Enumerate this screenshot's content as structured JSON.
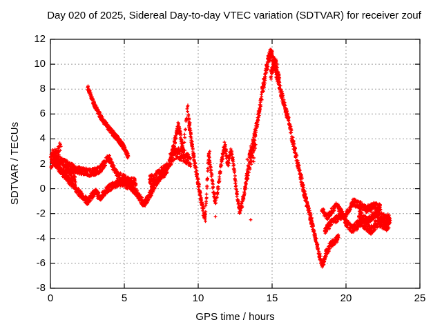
{
  "title": "Day 020 of 2025, Sidereal Day-to-day VTEC variation (SDTVAR) for receiver zouf",
  "chart_data": {
    "type": "scatter",
    "title": "Day 020 of 2025, Sidereal Day-to-day VTEC variation (SDTVAR) for receiver zouf",
    "xlabel": "GPS time / hours",
    "ylabel": "SDTVAR / TECUs",
    "xlim": [
      0,
      25
    ],
    "ylim": [
      -8,
      12
    ],
    "x_ticks": [
      0,
      5,
      10,
      15,
      20,
      25
    ],
    "y_ticks": [
      -8,
      -6,
      -4,
      -2,
      0,
      2,
      4,
      6,
      8,
      10,
      12
    ],
    "grid": true,
    "legend": "none",
    "marker": "plus",
    "marker_color": "#ff0000",
    "grid_color": "#9b9b9b",
    "axis_color": "#000000",
    "background_color": "#ffffff",
    "series_note": "single red-plus scatter series of sidereal day-to-day VTEC differences vs GPS time; data spans t=0 to t=23.0 h",
    "segments": [
      {
        "name": "start-cluster",
        "spread": 0.75,
        "density": 150,
        "points": [
          [
            0.02,
            2.3
          ],
          [
            0.2,
            2.6
          ],
          [
            0.45,
            2.45
          ],
          [
            0.6,
            2.35
          ]
        ]
      },
      {
        "name": "start-spike",
        "spread": 0.3,
        "density": 40,
        "points": [
          [
            0.5,
            3.0
          ],
          [
            0.62,
            3.55
          ],
          [
            0.72,
            3.1
          ]
        ]
      },
      {
        "name": "upper-band-early",
        "spread": 0.3,
        "density": 85,
        "points": [
          [
            0.3,
            2.5
          ],
          [
            0.7,
            2.2
          ],
          [
            1.0,
            2.05
          ],
          [
            1.4,
            1.75
          ],
          [
            1.8,
            1.5
          ],
          [
            2.2,
            1.4
          ],
          [
            2.6,
            1.3
          ],
          [
            3.0,
            1.35
          ],
          [
            3.4,
            1.6
          ],
          [
            3.7,
            2.1
          ],
          [
            3.9,
            2.5
          ],
          [
            4.05,
            2.3
          ],
          [
            4.25,
            1.7
          ],
          [
            4.5,
            1.15
          ],
          [
            4.8,
            0.9
          ],
          [
            5.1,
            0.75
          ],
          [
            5.5,
            0.6
          ],
          [
            5.8,
            0.5
          ]
        ]
      },
      {
        "name": "cluster-1h",
        "spread": 0.45,
        "density": 80,
        "points": [
          [
            0.85,
            1.7
          ],
          [
            1.1,
            1.25
          ],
          [
            1.4,
            0.95
          ],
          [
            1.7,
            0.9
          ]
        ]
      },
      {
        "name": "lower-arc-early",
        "spread": 0.28,
        "density": 85,
        "points": [
          [
            0.3,
            2.1
          ],
          [
            0.6,
            1.6
          ],
          [
            0.9,
            1.15
          ],
          [
            1.2,
            0.7
          ],
          [
            1.5,
            0.3
          ],
          [
            1.9,
            -0.25
          ],
          [
            2.2,
            -0.7
          ],
          [
            2.5,
            -1.0
          ],
          [
            2.8,
            -0.6
          ],
          [
            3.0,
            -0.25
          ],
          [
            3.2,
            -0.5
          ],
          [
            3.4,
            -0.7
          ],
          [
            3.6,
            -0.45
          ],
          [
            3.8,
            -0.1
          ],
          [
            4.0,
            0.1
          ],
          [
            4.3,
            0.3
          ],
          [
            4.6,
            0.45
          ],
          [
            5.0,
            0.5
          ],
          [
            5.4,
            0.4
          ]
        ]
      },
      {
        "name": "high-arc",
        "spread": 0.22,
        "density": 110,
        "points": [
          [
            2.52,
            8.2
          ],
          [
            2.7,
            7.55
          ],
          [
            2.9,
            6.95
          ],
          [
            3.15,
            6.3
          ],
          [
            3.45,
            5.7
          ],
          [
            3.75,
            5.15
          ],
          [
            4.05,
            4.7
          ],
          [
            4.35,
            4.3
          ],
          [
            4.65,
            3.85
          ],
          [
            4.95,
            3.35
          ],
          [
            5.15,
            2.9
          ],
          [
            5.28,
            2.5
          ]
        ]
      },
      {
        "name": "dip-6h",
        "spread": 0.3,
        "density": 85,
        "points": [
          [
            5.1,
            0.35
          ],
          [
            5.5,
            0.1
          ],
          [
            5.8,
            -0.3
          ],
          [
            6.1,
            -0.85
          ],
          [
            6.35,
            -1.2
          ],
          [
            6.6,
            -0.75
          ],
          [
            6.9,
            -0.15
          ],
          [
            7.2,
            0.5
          ],
          [
            7.5,
            1.1
          ],
          [
            7.8,
            1.65
          ],
          [
            8.0,
            1.9
          ]
        ]
      },
      {
        "name": "band-7h",
        "spread": 0.5,
        "density": 95,
        "points": [
          [
            6.7,
            0.55
          ],
          [
            7.1,
            0.85
          ],
          [
            7.5,
            1.25
          ],
          [
            7.9,
            1.55
          ]
        ]
      },
      {
        "name": "peak9-rise",
        "spread": 0.33,
        "density": 95,
        "points": [
          [
            8.0,
            1.9
          ],
          [
            8.2,
            2.7
          ],
          [
            8.4,
            3.7
          ],
          [
            8.55,
            4.5
          ],
          [
            8.65,
            5.0
          ],
          [
            8.78,
            4.5
          ],
          [
            8.9,
            3.6
          ],
          [
            9.0,
            3.05
          ]
        ]
      },
      {
        "name": "peak9-spike",
        "spread": 0.3,
        "density": 45,
        "points": [
          [
            9.05,
            3.8
          ],
          [
            9.15,
            5.0
          ],
          [
            9.25,
            6.1
          ],
          [
            9.3,
            6.5
          ],
          [
            9.38,
            5.7
          ],
          [
            9.45,
            4.9
          ]
        ]
      },
      {
        "name": "under-peak-band",
        "spread": 0.5,
        "density": 85,
        "points": [
          [
            8.1,
            2.3
          ],
          [
            8.5,
            2.9
          ],
          [
            8.9,
            2.75
          ],
          [
            9.2,
            2.5
          ],
          [
            9.5,
            2.1
          ]
        ]
      },
      {
        "name": "peak9-fall",
        "spread": 0.35,
        "density": 115,
        "points": [
          [
            9.35,
            5.3
          ],
          [
            9.5,
            4.2
          ],
          [
            9.65,
            3.0
          ],
          [
            9.8,
            1.8
          ],
          [
            9.95,
            0.8
          ],
          [
            10.1,
            -0.3
          ],
          [
            10.25,
            -1.3
          ],
          [
            10.4,
            -2.1
          ],
          [
            10.5,
            -2.3
          ]
        ]
      },
      {
        "name": "rebound-10.6",
        "spread": 0.3,
        "density": 110,
        "points": [
          [
            10.5,
            -1.8
          ],
          [
            10.57,
            -0.4
          ],
          [
            10.63,
            1.0
          ],
          [
            10.68,
            2.3
          ],
          [
            10.72,
            2.75
          ],
          [
            10.8,
            2.1
          ],
          [
            10.9,
            1.1
          ],
          [
            11.0,
            0.1
          ],
          [
            11.1,
            -0.7
          ],
          [
            11.2,
            -1.15
          ]
        ]
      },
      {
        "name": "peak-11.8",
        "spread": 0.32,
        "density": 100,
        "points": [
          [
            11.25,
            -0.8
          ],
          [
            11.4,
            0.5
          ],
          [
            11.55,
            1.9
          ],
          [
            11.7,
            3.0
          ],
          [
            11.8,
            3.55
          ],
          [
            11.9,
            2.8
          ],
          [
            12.0,
            1.9
          ],
          [
            12.1,
            2.5
          ],
          [
            12.2,
            3.2
          ],
          [
            12.32,
            2.5
          ],
          [
            12.45,
            1.3
          ],
          [
            12.58,
            0.0
          ],
          [
            12.7,
            -1.1
          ],
          [
            12.82,
            -1.8
          ],
          [
            12.95,
            -1.35
          ],
          [
            13.1,
            -0.4
          ],
          [
            13.25,
            0.7
          ],
          [
            13.4,
            1.7
          ]
        ]
      },
      {
        "name": "scatter-13.5",
        "spread": 1.0,
        "density": 70,
        "points": [
          [
            13.3,
            1.5
          ],
          [
            13.5,
            2.3
          ],
          [
            13.7,
            3.0
          ],
          [
            13.9,
            3.6
          ]
        ]
      },
      {
        "name": "bigpeak-rise",
        "spread": 0.45,
        "density": 120,
        "points": [
          [
            13.45,
            2.3
          ],
          [
            13.7,
            3.6
          ],
          [
            13.95,
            5.0
          ],
          [
            14.15,
            6.4
          ],
          [
            14.35,
            7.9
          ],
          [
            14.55,
            9.2
          ],
          [
            14.72,
            10.2
          ],
          [
            14.85,
            10.75
          ],
          [
            14.95,
            10.85
          ],
          [
            15.05,
            10.5
          ],
          [
            15.15,
            9.9
          ]
        ]
      },
      {
        "name": "bigpeak-lobe2",
        "spread": 0.4,
        "density": 95,
        "points": [
          [
            14.9,
            9.0
          ],
          [
            15.05,
            9.8
          ],
          [
            15.2,
            10.25
          ],
          [
            15.35,
            9.7
          ],
          [
            15.5,
            8.8
          ]
        ]
      },
      {
        "name": "bigpeak-fall",
        "spread": 0.38,
        "density": 110,
        "points": [
          [
            15.2,
            9.6
          ],
          [
            15.4,
            8.7
          ],
          [
            15.6,
            7.75
          ],
          [
            15.8,
            6.8
          ],
          [
            15.95,
            6.2
          ],
          [
            16.1,
            5.5
          ],
          [
            16.3,
            4.4
          ],
          [
            16.5,
            3.3
          ],
          [
            16.7,
            2.2
          ],
          [
            16.9,
            1.2
          ],
          [
            17.1,
            0.1
          ],
          [
            17.3,
            -0.95
          ],
          [
            17.5,
            -1.9
          ],
          [
            17.7,
            -2.7
          ]
        ]
      },
      {
        "name": "deep-dip-18.3",
        "spread": 0.3,
        "density": 90,
        "points": [
          [
            17.55,
            -2.2
          ],
          [
            17.8,
            -3.3
          ],
          [
            18.0,
            -4.3
          ],
          [
            18.2,
            -5.3
          ],
          [
            18.35,
            -6.0
          ],
          [
            18.45,
            -6.1
          ],
          [
            18.6,
            -5.3
          ],
          [
            18.8,
            -4.8
          ],
          [
            19.05,
            -4.4
          ],
          [
            19.3,
            -4.1
          ],
          [
            19.5,
            -4.0
          ]
        ]
      },
      {
        "name": "hook-branch",
        "spread": 0.25,
        "density": 85,
        "points": [
          [
            18.35,
            -1.6
          ],
          [
            18.55,
            -2.05
          ],
          [
            18.75,
            -2.25
          ],
          [
            18.95,
            -1.95
          ],
          [
            19.15,
            -1.6
          ],
          [
            19.35,
            -1.35
          ]
        ]
      },
      {
        "name": "mid-branch-19",
        "spread": 0.28,
        "density": 75,
        "points": [
          [
            18.55,
            -3.4
          ],
          [
            18.85,
            -2.95
          ],
          [
            19.15,
            -2.6
          ],
          [
            19.45,
            -2.35
          ],
          [
            19.7,
            -2.2
          ]
        ]
      },
      {
        "name": "tail-upper",
        "spread": 0.3,
        "density": 85,
        "points": [
          [
            19.4,
            -1.3
          ],
          [
            19.65,
            -1.9
          ],
          [
            19.95,
            -2.35
          ],
          [
            20.2,
            -1.7
          ],
          [
            20.45,
            -1.1
          ],
          [
            20.7,
            -1.2
          ],
          [
            21.0,
            -1.35
          ],
          [
            21.3,
            -1.65
          ],
          [
            21.6,
            -1.5
          ],
          [
            21.9,
            -1.35
          ],
          [
            22.15,
            -1.5
          ],
          [
            22.35,
            -1.45
          ]
        ]
      },
      {
        "name": "tail-lower",
        "spread": 0.35,
        "density": 85,
        "points": [
          [
            19.9,
            -2.5
          ],
          [
            20.15,
            -2.9
          ],
          [
            20.45,
            -3.3
          ],
          [
            20.75,
            -2.95
          ],
          [
            21.05,
            -2.6
          ],
          [
            21.35,
            -3.1
          ],
          [
            21.65,
            -3.35
          ],
          [
            21.95,
            -3.0
          ],
          [
            22.2,
            -2.65
          ],
          [
            22.5,
            -2.9
          ],
          [
            22.75,
            -3.05
          ],
          [
            23.0,
            -2.7
          ]
        ]
      },
      {
        "name": "tail-mid",
        "spread": 0.3,
        "density": 80,
        "points": [
          [
            20.85,
            -2.0
          ],
          [
            21.15,
            -2.3
          ],
          [
            21.45,
            -2.6
          ],
          [
            21.75,
            -2.25
          ],
          [
            22.05,
            -2.0
          ],
          [
            22.35,
            -2.2
          ],
          [
            22.65,
            -2.4
          ],
          [
            22.95,
            -2.3
          ]
        ]
      }
    ],
    "isolated_points": [
      [
        10.78,
        3.0
      ],
      [
        11.17,
        -2.25
      ],
      [
        13.55,
        -2.5
      ]
    ]
  }
}
